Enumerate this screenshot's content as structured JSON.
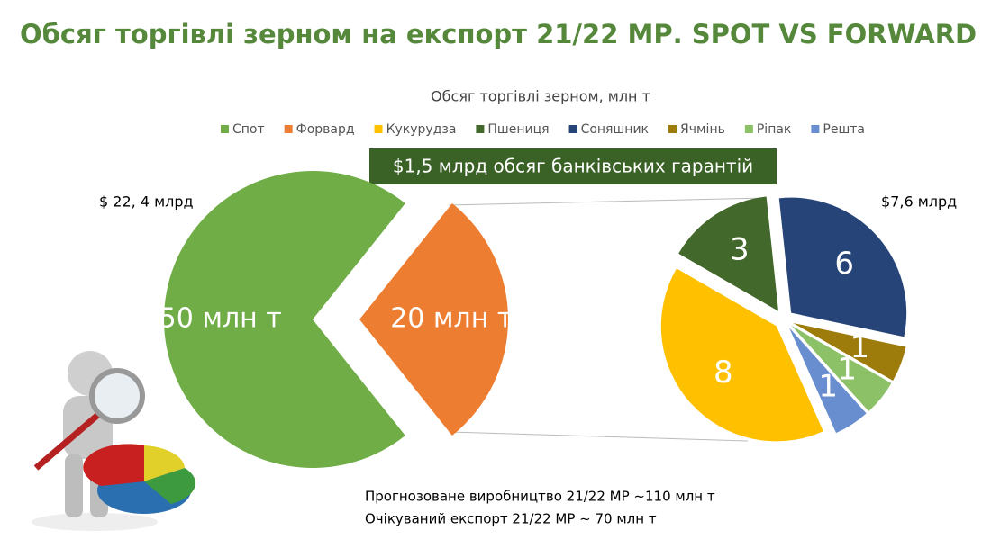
{
  "slide_title": "Обсяг торгівлі зерном на експорт 21/22 МР. SPOT VS FORWARD",
  "banner": "$1,5 млрд обсяг банківських гарантій",
  "notes": [
    "Прогнозоване виробництво 21/22 МР ~110 млн т",
    "Очікуваний експорт 21/22 МР ~ 70 млн т"
  ],
  "chart_data": [
    {
      "type": "pie",
      "title": "Обсяг торгівлі зерном, млн т",
      "categories": [
        "Спот",
        "Форвард"
      ],
      "values": [
        50,
        20
      ],
      "value_labels": [
        "50 млн т",
        "20 млн т"
      ],
      "colors": [
        "#70ad47",
        "#ed7d31"
      ],
      "annotation": "$ 22, 4 млрд"
    },
    {
      "type": "pie",
      "categories": [
        "Кукурудза",
        "Пшениця",
        "Соняшник",
        "Ячмінь",
        "Ріпак",
        "Решта"
      ],
      "values": [
        8,
        3,
        6,
        1,
        1,
        1
      ],
      "colors": [
        "#ffc000",
        "#43682b",
        "#264478",
        "#9e7c0c",
        "#8cc168",
        "#698ed0"
      ],
      "annotation": "$7,6 млрд"
    }
  ]
}
